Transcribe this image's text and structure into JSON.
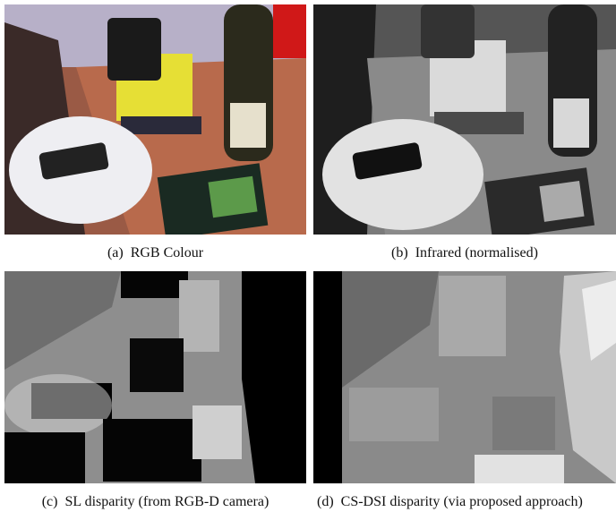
{
  "figure": {
    "panels": [
      {
        "label": "(a)",
        "caption": "RGB Colour"
      },
      {
        "label": "(b)",
        "caption": "Infrared (normalised)"
      },
      {
        "label": "(c)",
        "caption": "SL disparity (from RGB-D camera)"
      },
      {
        "label": "(d)",
        "caption": "CS-DSI disparity (via proposed approach)"
      }
    ]
  }
}
